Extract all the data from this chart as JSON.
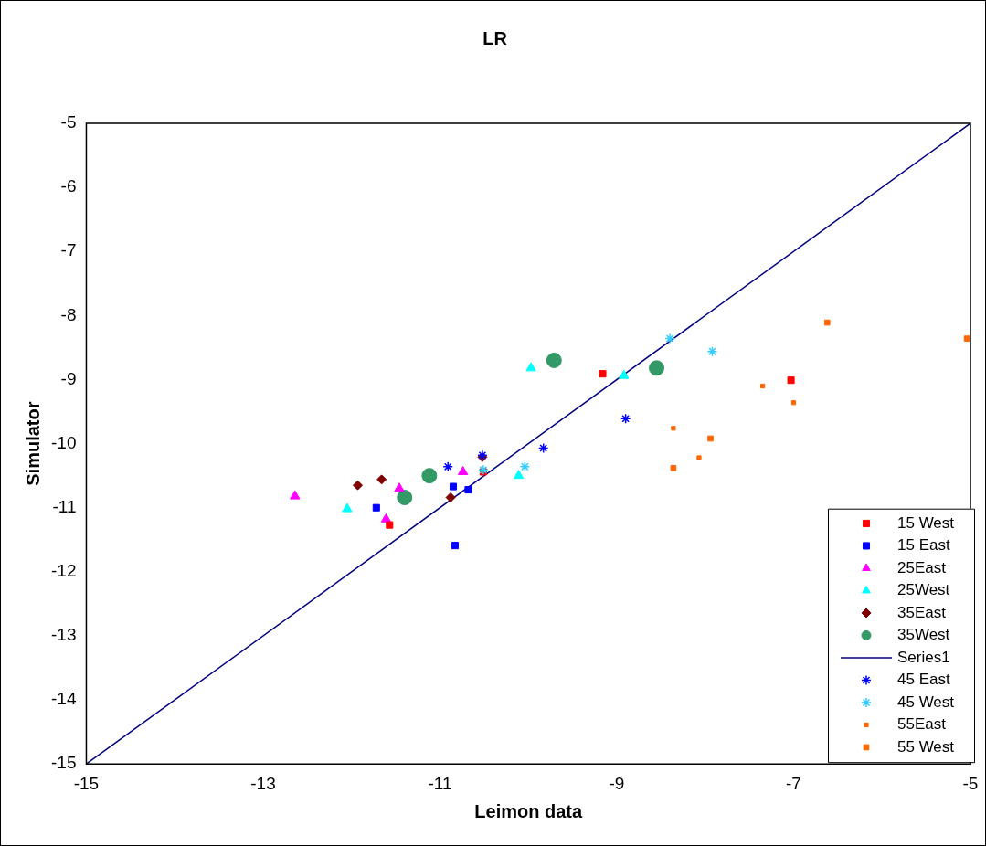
{
  "chart_data": {
    "type": "scatter",
    "title": "LR",
    "xlabel": "Leimon data",
    "ylabel": "Simulator",
    "xlim": [
      -15,
      -5
    ],
    "xticks": [
      -15,
      -13,
      -11,
      -9,
      -7,
      -5
    ],
    "ylim": [
      -15,
      -5
    ],
    "yticks": [
      -15,
      -14,
      -13,
      -12,
      -11,
      -10,
      -9,
      -8,
      -7,
      -6,
      -5
    ],
    "grid": false,
    "legend": "bottom right",
    "series": [
      {
        "name": "15 West",
        "color": "#ff0000",
        "marker": "square",
        "x": [
          -9.16,
          -7.03,
          -11.57,
          -10.51
        ],
        "values": [
          -8.91,
          -9.01,
          -11.27,
          -10.44
        ]
      },
      {
        "name": "15 East",
        "color": "#0000ff",
        "marker": "square",
        "x": [
          -11.72,
          -10.85,
          -10.68,
          -10.83
        ],
        "values": [
          -11.0,
          -10.67,
          -10.72,
          -11.59
        ]
      },
      {
        "name": "25East",
        "color": "#ff00ff",
        "marker": "triangle",
        "x": [
          -12.64,
          -10.74,
          -11.46,
          -11.61
        ],
        "values": [
          -10.82,
          -10.44,
          -10.7,
          -11.18
        ]
      },
      {
        "name": "25West",
        "color": "#00ffff",
        "marker": "triangle",
        "x": [
          -12.05,
          -10.11,
          -9.97,
          -8.92
        ],
        "values": [
          -11.02,
          -10.5,
          -8.82,
          -8.94
        ]
      },
      {
        "name": "35East",
        "color": "#800000",
        "marker": "diamond",
        "x": [
          -11.93,
          -11.66,
          -10.88,
          -10.52
        ],
        "values": [
          -10.65,
          -10.56,
          -10.84,
          -10.21
        ]
      },
      {
        "name": "35West",
        "color": "#339966",
        "marker": "circle",
        "x": [
          -11.12,
          -11.4,
          -9.71,
          -8.55
        ],
        "values": [
          -10.5,
          -10.84,
          -8.7,
          -8.82
        ]
      },
      {
        "name": "Series1",
        "type": "line",
        "color": "#000080",
        "x": [
          -15,
          -5
        ],
        "values": [
          -15,
          -5
        ]
      },
      {
        "name": "45 East",
        "color": "#0000ff",
        "marker": "cross",
        "x": [
          -10.91,
          -9.83,
          -8.9,
          -10.52
        ],
        "values": [
          -10.36,
          -10.07,
          -9.61,
          -10.18
        ]
      },
      {
        "name": "45 West",
        "color": "#33ccff",
        "marker": "cross",
        "x": [
          -10.51,
          -10.04,
          -8.4,
          -7.92
        ],
        "values": [
          -10.41,
          -10.36,
          -8.36,
          -8.56
        ]
      },
      {
        "name": "55East",
        "color": "#ff6600",
        "marker": "square",
        "x": [
          -7.35,
          -7.0,
          -8.36,
          -8.07
        ],
        "values": [
          -9.1,
          -9.36,
          -9.76,
          -10.22
        ]
      },
      {
        "name": "55 West",
        "color": "#ff6600",
        "marker": "square",
        "x": [
          -6.62,
          -5.04,
          -7.94,
          -8.36
        ],
        "values": [
          -8.11,
          -8.36,
          -9.92,
          -10.38
        ]
      }
    ]
  }
}
